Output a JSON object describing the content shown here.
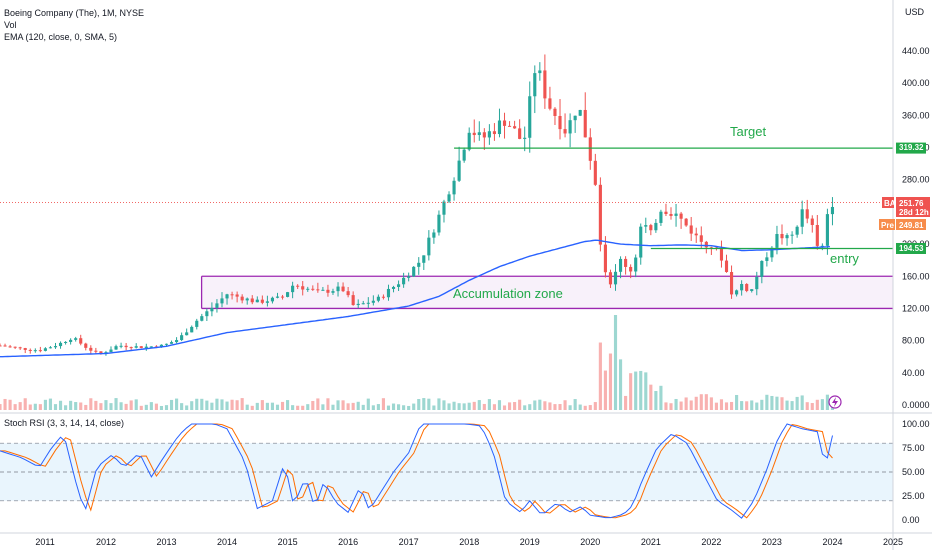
{
  "header": {
    "title": "Boeing Company (The), 1M, NYSE",
    "vol_label": "Vol",
    "ema_label": "EMA (120, close, 0, SMA, 5)",
    "currency": "USD"
  },
  "stoch": {
    "label": "Stoch RSI (3, 3, 14, 14, close)"
  },
  "colors": {
    "up": "#26a69a",
    "down": "#ef5350",
    "ema": "#2962ff",
    "k": "#2962ff",
    "d": "#ff6d00",
    "annot": "#22a84a",
    "zone": "#9c27b0"
  },
  "chart_data": {
    "type": "candlestick",
    "title": "Boeing Company (The), 1M, NYSE",
    "x_ticks": [
      "2011",
      "2012",
      "2013",
      "2014",
      "2015",
      "2016",
      "2017",
      "2018",
      "2019",
      "2020",
      "2021",
      "2022",
      "2023",
      "2024",
      "2025"
    ],
    "y_ticks": [
      "440.00",
      "400.00",
      "360.00",
      "320.00",
      "280.00",
      "240.00",
      "200.00",
      "160.00",
      "120.00",
      "80.00",
      "40.00",
      "0.0000"
    ],
    "ylim": [
      0,
      460
    ],
    "xlim": [
      2010.25,
      2025.0
    ],
    "stoch_ticks": [
      "100.00",
      "75.00",
      "50.00",
      "25.00",
      "0.00"
    ],
    "stoch_bands": [
      80,
      50,
      20
    ],
    "annotations": {
      "target": {
        "label": "Target",
        "price": 319.32,
        "price_label": "319.32"
      },
      "entry": {
        "label": "entry",
        "price": 194.53,
        "price_label": "194.53"
      },
      "zone": {
        "label": "Accumulation zone",
        "top": 160,
        "bottom": 120,
        "start": 2013.58
      }
    },
    "last": {
      "symbol": "BA",
      "price": 251.76,
      "price_label": "251.76",
      "countdown": "28d 12h",
      "pre_label": "Pre",
      "pre_price": 249.81,
      "pre_price_label": "249.81"
    },
    "candle_anchors": [
      [
        2010.25,
        74
      ],
      [
        2010.6,
        70
      ],
      [
        2010.9,
        68
      ],
      [
        2011.2,
        75
      ],
      [
        2011.45,
        84
      ],
      [
        2011.7,
        70
      ],
      [
        2011.9,
        63
      ],
      [
        2012.2,
        74
      ],
      [
        2012.6,
        72
      ],
      [
        2012.95,
        74
      ],
      [
        2013.2,
        82
      ],
      [
        2013.5,
        105
      ],
      [
        2013.8,
        124
      ],
      [
        2014.0,
        138
      ],
      [
        2014.5,
        128
      ],
      [
        2014.9,
        133
      ],
      [
        2015.1,
        150
      ],
      [
        2015.5,
        140
      ],
      [
        2015.9,
        145
      ],
      [
        2016.1,
        122
      ],
      [
        2016.5,
        132
      ],
      [
        2016.9,
        156
      ],
      [
        2017.2,
        180
      ],
      [
        2017.5,
        235
      ],
      [
        2017.8,
        295
      ],
      [
        2018.0,
        345
      ],
      [
        2018.2,
        330
      ],
      [
        2018.6,
        355
      ],
      [
        2018.9,
        325
      ],
      [
        2019.1,
        425
      ],
      [
        2019.3,
        375
      ],
      [
        2019.6,
        340
      ],
      [
        2019.8,
        375
      ],
      [
        2019.95,
        325
      ],
      [
        2020.08,
        280
      ],
      [
        2020.2,
        175
      ],
      [
        2020.35,
        150
      ],
      [
        2020.5,
        180
      ],
      [
        2020.7,
        165
      ],
      [
        2020.85,
        228
      ],
      [
        2021.0,
        212
      ],
      [
        2021.15,
        245
      ],
      [
        2021.4,
        238
      ],
      [
        2021.6,
        222
      ],
      [
        2021.8,
        205
      ],
      [
        2022.0,
        198
      ],
      [
        2022.2,
        180
      ],
      [
        2022.35,
        135
      ],
      [
        2022.5,
        150
      ],
      [
        2022.65,
        140
      ],
      [
        2022.8,
        170
      ],
      [
        2022.95,
        192
      ],
      [
        2023.1,
        212
      ],
      [
        2023.3,
        205
      ],
      [
        2023.5,
        240
      ],
      [
        2023.65,
        225
      ],
      [
        2023.8,
        180
      ],
      [
        2023.95,
        255
      ],
      [
        2024.0,
        252
      ]
    ],
    "ema_anchors": [
      [
        2010.25,
        60
      ],
      [
        2012.0,
        64
      ],
      [
        2013.0,
        73
      ],
      [
        2014.0,
        90
      ],
      [
        2015.0,
        100
      ],
      [
        2016.0,
        110
      ],
      [
        2017.0,
        123
      ],
      [
        2017.5,
        135
      ],
      [
        2018.0,
        155
      ],
      [
        2018.5,
        172
      ],
      [
        2019.0,
        185
      ],
      [
        2019.5,
        195
      ],
      [
        2019.9,
        203
      ],
      [
        2020.1,
        205
      ],
      [
        2020.5,
        200
      ],
      [
        2021.0,
        198
      ],
      [
        2021.5,
        199
      ],
      [
        2022.0,
        198
      ],
      [
        2022.5,
        192
      ],
      [
        2023.0,
        193
      ],
      [
        2023.5,
        195
      ],
      [
        2024.0,
        197
      ]
    ],
    "stoch_k_anchors": [
      [
        2010.25,
        72
      ],
      [
        2010.6,
        65
      ],
      [
        2010.9,
        55
      ],
      [
        2011.1,
        75
      ],
      [
        2011.3,
        90
      ],
      [
        2011.5,
        40
      ],
      [
        2011.65,
        8
      ],
      [
        2011.85,
        55
      ],
      [
        2012.1,
        68
      ],
      [
        2012.3,
        55
      ],
      [
        2012.55,
        70
      ],
      [
        2012.75,
        45
      ],
      [
        2012.95,
        65
      ],
      [
        2013.2,
        88
      ],
      [
        2013.4,
        100
      ],
      [
        2013.8,
        100
      ],
      [
        2014.0,
        95
      ],
      [
        2014.3,
        60
      ],
      [
        2014.5,
        12
      ],
      [
        2014.75,
        20
      ],
      [
        2014.95,
        60
      ],
      [
        2015.1,
        15
      ],
      [
        2015.3,
        45
      ],
      [
        2015.45,
        12
      ],
      [
        2015.6,
        40
      ],
      [
        2015.8,
        18
      ],
      [
        2016.0,
        8
      ],
      [
        2016.2,
        35
      ],
      [
        2016.35,
        10
      ],
      [
        2016.55,
        30
      ],
      [
        2016.75,
        50
      ],
      [
        2017.0,
        70
      ],
      [
        2017.2,
        100
      ],
      [
        2017.6,
        100
      ],
      [
        2017.95,
        100
      ],
      [
        2018.2,
        98
      ],
      [
        2018.4,
        70
      ],
      [
        2018.6,
        20
      ],
      [
        2018.85,
        8
      ],
      [
        2019.0,
        20
      ],
      [
        2019.2,
        5
      ],
      [
        2019.45,
        18
      ],
      [
        2019.65,
        8
      ],
      [
        2019.85,
        14
      ],
      [
        2020.0,
        5
      ],
      [
        2020.3,
        2
      ],
      [
        2020.55,
        6
      ],
      [
        2020.7,
        15
      ],
      [
        2020.85,
        40
      ],
      [
        2021.1,
        75
      ],
      [
        2021.35,
        90
      ],
      [
        2021.6,
        80
      ],
      [
        2021.85,
        50
      ],
      [
        2022.1,
        20
      ],
      [
        2022.3,
        12
      ],
      [
        2022.5,
        2
      ],
      [
        2022.7,
        20
      ],
      [
        2022.9,
        50
      ],
      [
        2023.1,
        85
      ],
      [
        2023.25,
        100
      ],
      [
        2023.5,
        95
      ],
      [
        2023.75,
        92
      ],
      [
        2023.85,
        64
      ],
      [
        2023.95,
        65
      ],
      [
        2024.0,
        88
      ]
    ]
  }
}
